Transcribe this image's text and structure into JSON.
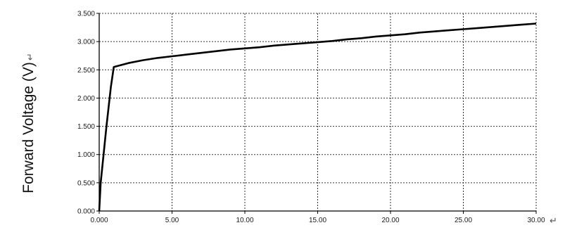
{
  "chart_data": {
    "type": "line",
    "ylabel": "Forward Voltage (V)",
    "ylabel_mark": "↵",
    "xaxis_end_mark": "↵",
    "xlim": [
      0,
      30
    ],
    "ylim": [
      0,
      3.5
    ],
    "x_ticks": [
      "0.000",
      "5.00",
      "10.00",
      "15.00",
      "20.00",
      "25.00",
      "30.00"
    ],
    "y_ticks": [
      "0.000",
      "0.500",
      "1.000",
      "1.500",
      "2.000",
      "2.500",
      "3.000",
      "3.500"
    ],
    "grid": true,
    "series": [
      {
        "x": [
          0,
          0.1,
          0.5,
          0.8,
          1.0,
          2,
          3,
          4,
          5,
          6,
          7,
          8,
          9,
          10,
          11,
          12,
          13,
          14,
          15,
          16,
          17,
          18,
          19,
          20,
          21,
          22,
          23,
          24,
          25,
          26,
          27,
          28,
          29,
          30
        ],
        "values": [
          0,
          0.5,
          1.5,
          2.2,
          2.55,
          2.62,
          2.67,
          2.71,
          2.74,
          2.77,
          2.8,
          2.83,
          2.86,
          2.88,
          2.9,
          2.93,
          2.95,
          2.97,
          2.99,
          3.01,
          3.04,
          3.06,
          3.09,
          3.11,
          3.13,
          3.16,
          3.18,
          3.2,
          3.22,
          3.24,
          3.26,
          3.28,
          3.3,
          3.32
        ]
      }
    ]
  }
}
